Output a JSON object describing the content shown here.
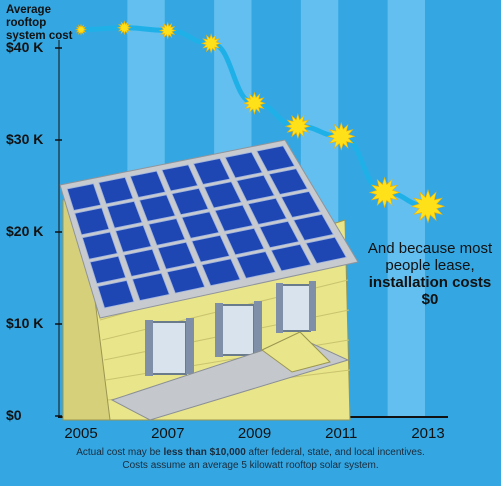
{
  "chart_data": {
    "type": "line",
    "title": "",
    "ylabel": "Average rooftop system cost",
    "xlabel": "",
    "x": [
      2005,
      2006,
      2007,
      2008,
      2009,
      2010,
      2011,
      2012,
      2013
    ],
    "values": [
      42000,
      42200,
      41900,
      40500,
      34000,
      31500,
      30400,
      24300,
      22800
    ],
    "xlim": [
      2005,
      2013
    ],
    "ylim": [
      0,
      44000
    ],
    "x_ticks": [
      "2005",
      "2007",
      "2009",
      "2011",
      "2013"
    ],
    "y_ticks": [
      "$0",
      "$10 K",
      "$20 K",
      "$30 K",
      "$40 K"
    ],
    "grid": "vertical bands",
    "line_color": "#1fb0e8",
    "marker": "yellow sunburst",
    "marker_color": "#ffe11a"
  },
  "labels": {
    "ylabel_line1": "Average rooftop",
    "ylabel_line2": "system cost",
    "annotation_line1": "And because most",
    "annotation_line2": "people lease,",
    "annotation_line3": "installation costs $0",
    "footnote_pre": "Actual cost may be ",
    "footnote_bold": "less than $10,000",
    "footnote_post": " after federal, state, and local incentives.",
    "footnote_line2": "Costs assume an average 5 kilowatt rooftop solar system."
  },
  "illustration": {
    "subject": "house-with-solar-panels",
    "wall_color": "#e8e58a",
    "panel_color": "#1f47b3",
    "roof_color": "#bfc3c8"
  },
  "colors": {
    "background": "#34a7e2",
    "band": "#62bff0"
  }
}
